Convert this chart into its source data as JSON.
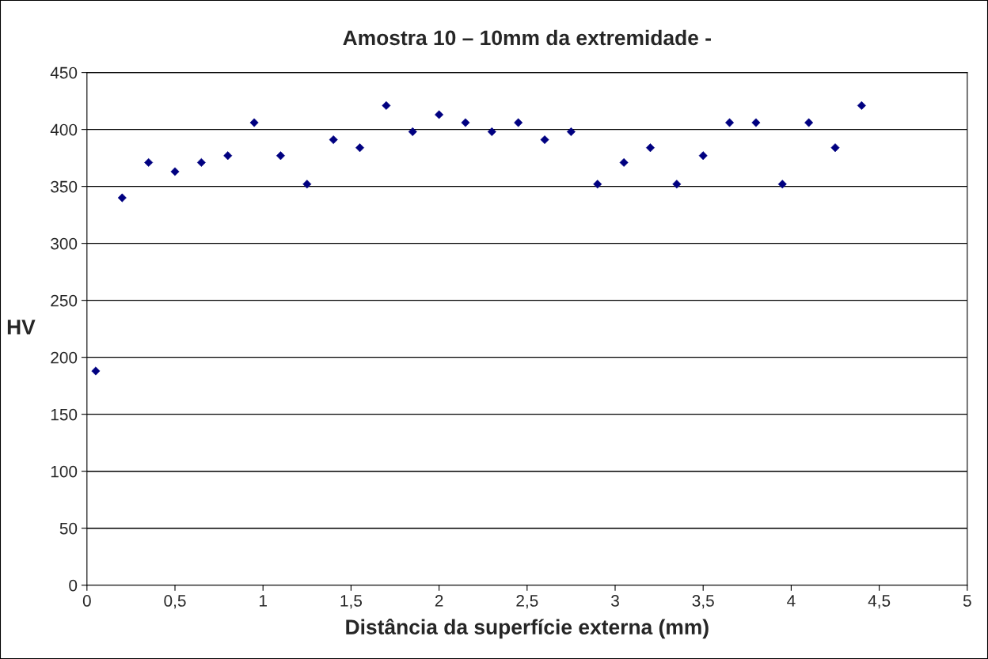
{
  "chart_data": {
    "type": "scatter",
    "title": "Amostra 10 – 10mm da extremidade -",
    "xlabel": "Distância da superfície externa (mm)",
    "ylabel": "HV",
    "x": [
      0.05,
      0.2,
      0.35,
      0.5,
      0.65,
      0.8,
      0.95,
      1.1,
      1.25,
      1.4,
      1.55,
      1.7,
      1.85,
      2.0,
      2.15,
      2.3,
      2.45,
      2.6,
      2.75,
      2.9,
      3.05,
      3.2,
      3.35,
      3.5,
      3.65,
      3.8,
      3.95,
      4.1,
      4.25,
      4.4
    ],
    "series": [
      {
        "color": "#000080",
        "values": [
          188,
          340,
          371,
          363,
          371,
          377,
          406,
          377,
          352,
          391,
          384,
          421,
          398,
          413,
          406,
          398,
          406,
          391,
          398,
          352,
          371,
          384,
          352,
          377,
          406,
          406,
          352,
          406,
          384,
          421
        ]
      }
    ],
    "xlim": [
      0,
      5
    ],
    "xticks": [
      0,
      {
        "value": 0.5,
        "label": "0,5"
      },
      1,
      {
        "value": 1.5,
        "label": "1,5"
      },
      2,
      {
        "value": 2.5,
        "label": "2,5"
      },
      3,
      {
        "value": 3.5,
        "label": "3,5"
      },
      4,
      {
        "value": 4.5,
        "label": "4,5"
      },
      5
    ],
    "ylim": [
      0,
      450
    ],
    "yticks": [
      0,
      50,
      100,
      150,
      200,
      250,
      300,
      350,
      400,
      450
    ],
    "grid": "y",
    "marker": "diamond",
    "legend": false
  }
}
